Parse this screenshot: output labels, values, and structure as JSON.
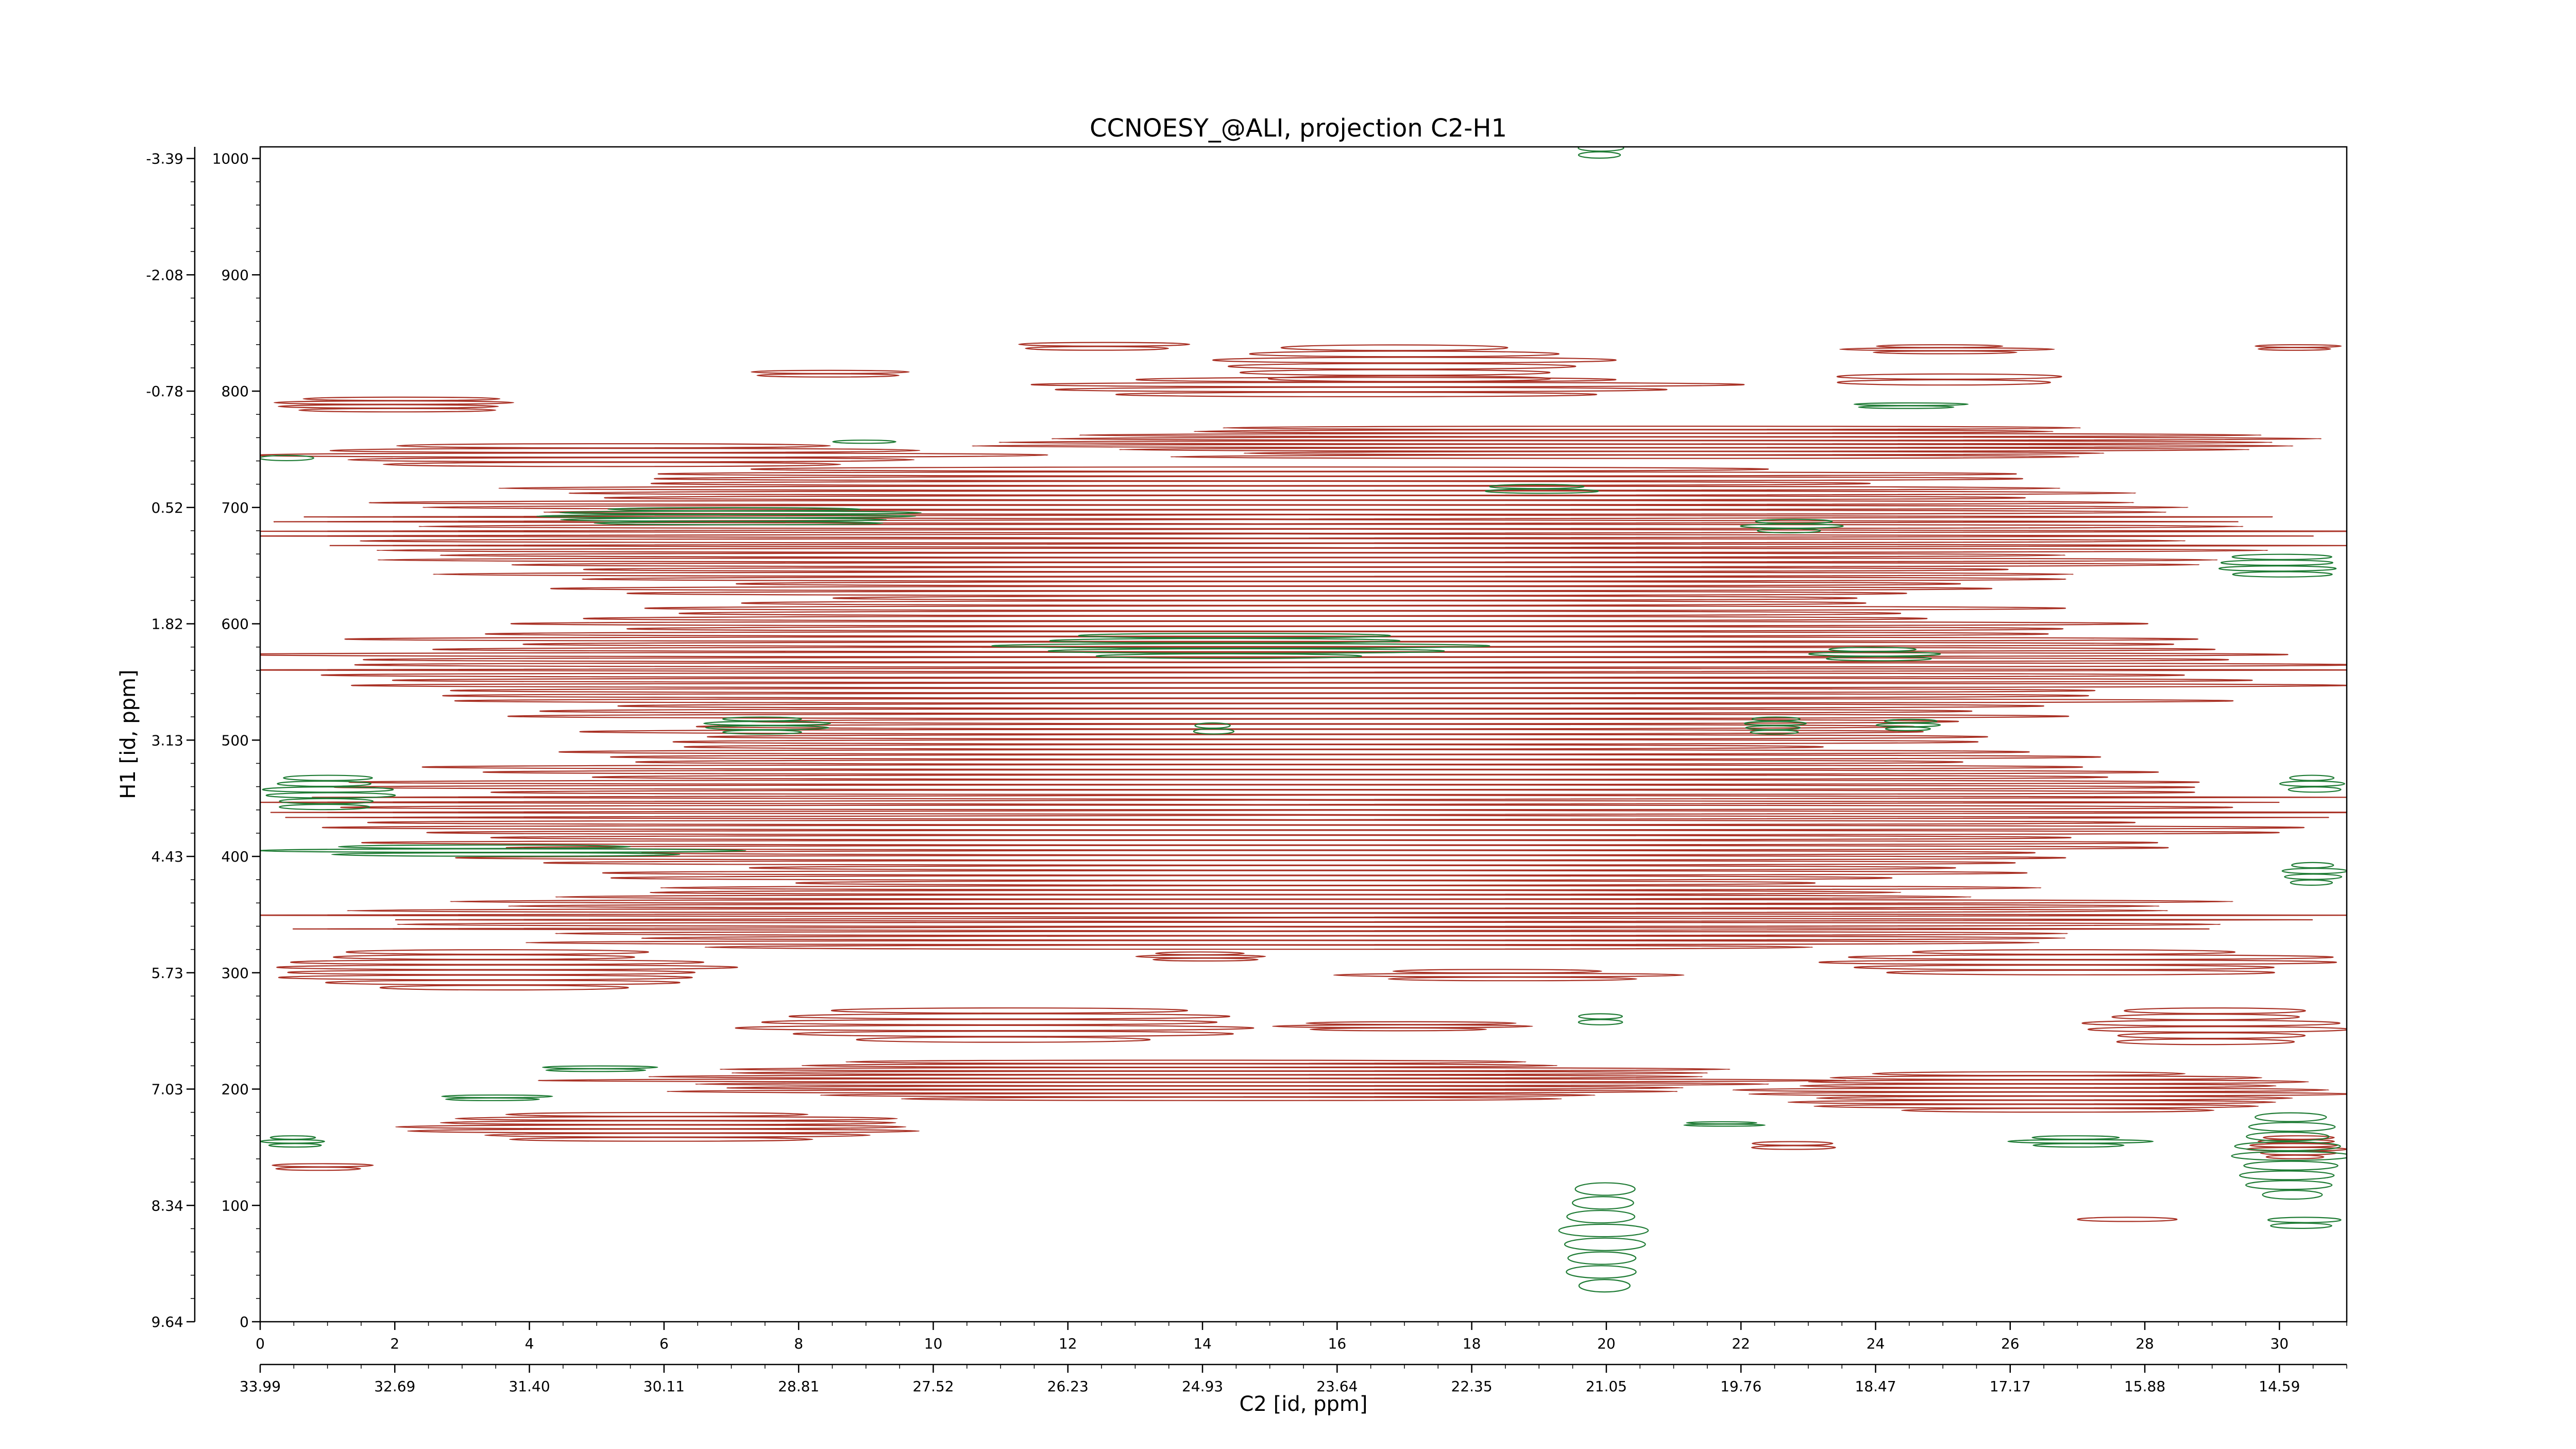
{
  "chart_data": {
    "type": "heatmap",
    "subtype": "2D NMR contour plot (positive contours red, negative contours green)",
    "title": "CCNOESY_@ALI, projection C2-H1",
    "xlabel": "C2 [id, ppm]",
    "ylabel": "H1 [id, ppm]",
    "xlim": [
      0,
      31
    ],
    "ylim": [
      0,
      1010
    ],
    "x_index_ticks": [
      "0",
      "2",
      "4",
      "6",
      "8",
      "10",
      "12",
      "14",
      "16",
      "18",
      "20",
      "22",
      "24",
      "26",
      "28",
      "30"
    ],
    "x_ppm_ticks": [
      "33.99",
      "32.69",
      "31.40",
      "30.11",
      "28.81",
      "27.52",
      "26.23",
      "24.93",
      "23.64",
      "22.35",
      "21.05",
      "19.76",
      "18.47",
      "17.17",
      "15.88",
      "14.59"
    ],
    "y_index_ticks": [
      "0",
      "100",
      "200",
      "300",
      "400",
      "500",
      "600",
      "700",
      "800",
      "900",
      "1000"
    ],
    "y_ppm_ticks": [
      "9.64",
      "8.34",
      "7.03",
      "5.73",
      "4.43",
      "3.13",
      "1.82",
      "0.52",
      "-0.78",
      "-2.08",
      "-3.39"
    ],
    "grid": false,
    "legend": "none",
    "colors": {
      "positive_contours": "#a93226",
      "negative_contours": "#1e7b34",
      "axes": "#000000"
    },
    "contour_bands": {
      "positive": [
        {
          "x": [
            0,
            4
          ],
          "y": [
            782,
            795
          ],
          "levels": 4
        },
        {
          "x": [
            11,
            14
          ],
          "y": [
            835,
            842
          ],
          "levels": 2
        },
        {
          "x": [
            7,
            10
          ],
          "y": [
            812,
            818
          ],
          "levels": 2
        },
        {
          "x": [
            14,
            20
          ],
          "y": [
            808,
            840
          ],
          "levels": 6
        },
        {
          "x": [
            23.5,
            26.5
          ],
          "y": [
            832,
            840
          ],
          "levels": 3
        },
        {
          "x": [
            11,
            22
          ],
          "y": [
            795,
            812
          ],
          "levels": 4
        },
        {
          "x": [
            23,
            27
          ],
          "y": [
            805,
            815
          ],
          "levels": 2
        },
        {
          "x": [
            29.5,
            31
          ],
          "y": [
            835,
            840
          ],
          "levels": 2
        },
        {
          "x": [
            10.5,
            31
          ],
          "y": [
            742,
            770
          ],
          "levels": 9
        },
        {
          "x": [
            0,
            11
          ],
          "y": [
            735,
            755
          ],
          "levels": 5
        },
        {
          "x": [
            0,
            31
          ],
          "y": [
            620,
            735
          ],
          "levels": 28
        },
        {
          "x": [
            0,
            31
          ],
          "y": [
            505,
            620
          ],
          "levels": 26
        },
        {
          "x": [
            0,
            31
          ],
          "y": [
            375,
            505
          ],
          "levels": 30
        },
        {
          "x": [
            0,
            31
          ],
          "y": [
            320,
            375
          ],
          "levels": 14
        },
        {
          "x": [
            0,
            7
          ],
          "y": [
            285,
            320
          ],
          "levels": 8
        },
        {
          "x": [
            13,
            15
          ],
          "y": [
            310,
            318
          ],
          "levels": 3
        },
        {
          "x": [
            16,
            21
          ],
          "y": [
            293,
            303
          ],
          "levels": 3
        },
        {
          "x": [
            23,
            31
          ],
          "y": [
            298,
            320
          ],
          "levels": 5
        },
        {
          "x": [
            7,
            15
          ],
          "y": [
            240,
            270
          ],
          "levels": 6
        },
        {
          "x": [
            15,
            19
          ],
          "y": [
            250,
            258
          ],
          "levels": 3
        },
        {
          "x": [
            27,
            31
          ],
          "y": [
            238,
            270
          ],
          "levels": 6
        },
        {
          "x": [
            5,
            23
          ],
          "y": [
            190,
            225
          ],
          "levels": 11
        },
        {
          "x": [
            22,
            31
          ],
          "y": [
            180,
            215
          ],
          "levels": 10
        },
        {
          "x": [
            2,
            10
          ],
          "y": [
            155,
            180
          ],
          "levels": 7
        },
        {
          "x": [
            22,
            23.5
          ],
          "y": [
            148,
            155
          ],
          "levels": 2
        },
        {
          "x": [
            29.5,
            31
          ],
          "y": [
            140,
            160
          ],
          "levels": 6
        },
        {
          "x": [
            0,
            1.8
          ],
          "y": [
            130,
            136
          ],
          "levels": 2
        },
        {
          "x": [
            27,
            28.5
          ],
          "y": [
            86,
            90
          ],
          "levels": 1
        }
      ],
      "negative": [
        {
          "x": [
            19.5,
            20.3
          ],
          "y": [
            1000,
            1012
          ],
          "levels": 2
        },
        {
          "x": [
            23.5,
            25.5
          ],
          "y": [
            785,
            790
          ],
          "levels": 2
        },
        {
          "x": [
            0,
            0.8
          ],
          "y": [
            740,
            745
          ],
          "levels": 1
        },
        {
          "x": [
            8.5,
            9.5
          ],
          "y": [
            755,
            758
          ],
          "levels": 1
        },
        {
          "x": [
            18,
            20
          ],
          "y": [
            712,
            720
          ],
          "levels": 2
        },
        {
          "x": [
            4,
            10
          ],
          "y": [
            685,
            700
          ],
          "levels": 5
        },
        {
          "x": [
            22,
            23.5
          ],
          "y": [
            678,
            690
          ],
          "levels": 3
        },
        {
          "x": [
            29,
            31
          ],
          "y": [
            640,
            660
          ],
          "levels": 4
        },
        {
          "x": [
            11,
            18
          ],
          "y": [
            570,
            592
          ],
          "levels": 5
        },
        {
          "x": [
            23,
            25
          ],
          "y": [
            568,
            580
          ],
          "levels": 3
        },
        {
          "x": [
            6.5,
            8.5
          ],
          "y": [
            505,
            520
          ],
          "levels": 4
        },
        {
          "x": [
            13.8,
            14.5
          ],
          "y": [
            505,
            515
          ],
          "levels": 2
        },
        {
          "x": [
            22,
            23
          ],
          "y": [
            505,
            520
          ],
          "levels": 4
        },
        {
          "x": [
            24,
            25
          ],
          "y": [
            508,
            518
          ],
          "levels": 3
        },
        {
          "x": [
            0,
            2
          ],
          "y": [
            440,
            470
          ],
          "levels": 6
        },
        {
          "x": [
            30,
            31
          ],
          "y": [
            455,
            470
          ],
          "levels": 3
        },
        {
          "x": [
            0,
            7
          ],
          "y": [
            400,
            410
          ],
          "levels": 3
        },
        {
          "x": [
            30,
            31
          ],
          "y": [
            375,
            395
          ],
          "levels": 4
        },
        {
          "x": [
            19.5,
            20.3
          ],
          "y": [
            255,
            265
          ],
          "levels": 2
        },
        {
          "x": [
            4,
            6
          ],
          "y": [
            215,
            220
          ],
          "levels": 2
        },
        {
          "x": [
            2.5,
            4.5
          ],
          "y": [
            190,
            195
          ],
          "levels": 2
        },
        {
          "x": [
            0,
            1
          ],
          "y": [
            150,
            160
          ],
          "levels": 3
        },
        {
          "x": [
            21,
            22.5
          ],
          "y": [
            168,
            172
          ],
          "levels": 2
        },
        {
          "x": [
            26,
            28
          ],
          "y": [
            150,
            160
          ],
          "levels": 3
        },
        {
          "x": [
            29.3,
            31
          ],
          "y": [
            105,
            180
          ],
          "levels": 9
        },
        {
          "x": [
            19.3,
            20.6
          ],
          "y": [
            25,
            120
          ],
          "levels": 8
        },
        {
          "x": [
            29.7,
            31
          ],
          "y": [
            80,
            90
          ],
          "levels": 2
        }
      ]
    }
  }
}
